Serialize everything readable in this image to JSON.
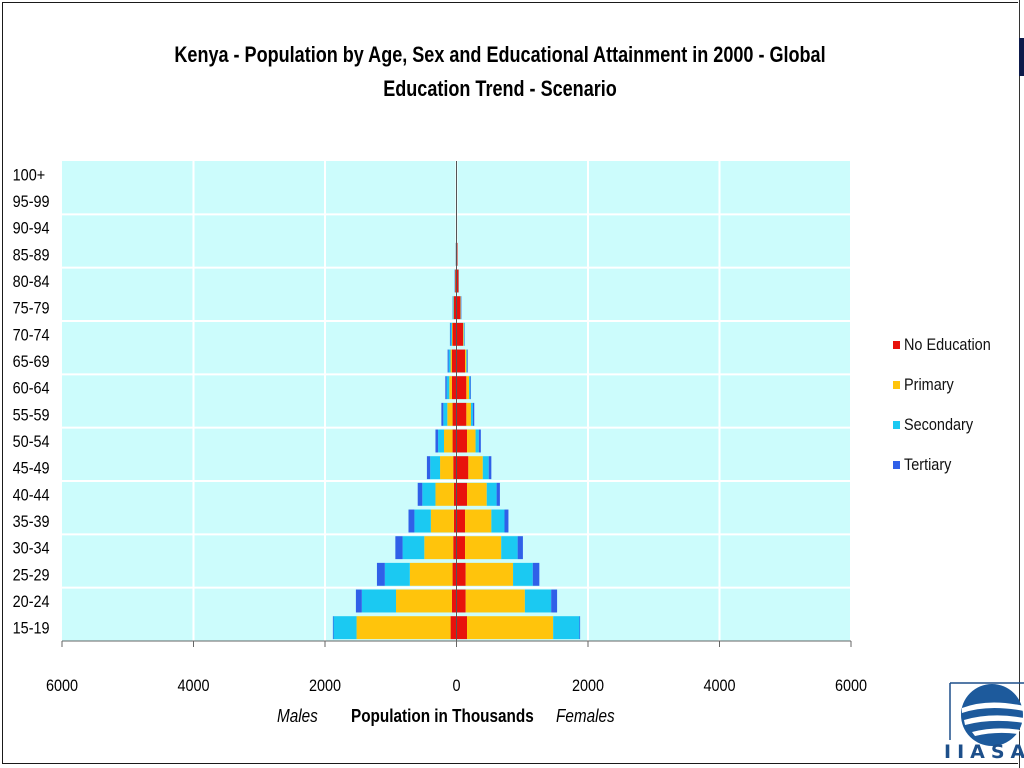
{
  "chart_data": {
    "type": "bar",
    "title": "Kenya - Population by Age, Sex and Educational  Attainment  in 2000 - Global Education  Trend - Scenario",
    "xlabel": "Population in Thousands",
    "left_label": "Males",
    "right_label": "Females",
    "xlim": [
      -6000,
      6000
    ],
    "x_ticks": [
      -6000,
      -4000,
      -2000,
      0,
      2000,
      4000,
      6000
    ],
    "x_tick_labels": [
      "6000",
      "4000",
      "2000",
      "0",
      "2000",
      "4000",
      "6000"
    ],
    "grid": true,
    "legend_position": "right",
    "categories": [
      "15-19",
      "20-24",
      "25-29",
      "30-34",
      "35-39",
      "40-44",
      "45-49",
      "50-54",
      "55-59",
      "60-64",
      "65-69",
      "70-74",
      "75-79",
      "80-84",
      "85-89",
      "90-94",
      "95-99",
      "100+"
    ],
    "series": [
      {
        "name": "No Education",
        "color": "#e8120c",
        "males": [
          90,
          70,
          60,
          50,
          40,
          40,
          50,
          60,
          60,
          70,
          70,
          60,
          40,
          20,
          10,
          5,
          2,
          1
        ],
        "females": [
          160,
          140,
          140,
          130,
          130,
          160,
          180,
          160,
          150,
          150,
          130,
          100,
          60,
          30,
          15,
          8,
          3,
          1
        ]
      },
      {
        "name": "Primary",
        "color": "#ffc40c",
        "males": [
          1430,
          850,
          650,
          440,
          350,
          280,
          200,
          130,
          80,
          40,
          20,
          10,
          5,
          2,
          0,
          0,
          0,
          0
        ],
        "females": [
          1310,
          900,
          720,
          550,
          400,
          300,
          220,
          130,
          70,
          40,
          20,
          10,
          5,
          2,
          0,
          0,
          0,
          0
        ]
      },
      {
        "name": "Secondary",
        "color": "#1bc9f2",
        "males": [
          350,
          520,
          380,
          330,
          250,
          200,
          150,
          90,
          60,
          40,
          30,
          20,
          10,
          5,
          2,
          0,
          0,
          0
        ],
        "females": [
          400,
          400,
          300,
          250,
          200,
          150,
          90,
          50,
          30,
          20,
          10,
          10,
          5,
          2,
          0,
          0,
          0,
          0
        ]
      },
      {
        "name": "Tertiary",
        "color": "#3060e8",
        "males": [
          10,
          90,
          120,
          110,
          90,
          70,
          50,
          40,
          30,
          20,
          15,
          10,
          5,
          3,
          1,
          0,
          0,
          0
        ],
        "females": [
          10,
          90,
          100,
          80,
          60,
          50,
          40,
          30,
          20,
          10,
          10,
          5,
          5,
          2,
          0,
          0,
          0,
          0
        ]
      }
    ],
    "colors": {
      "plot_background": "#ccfcfc",
      "gridline": "#ffffff"
    }
  },
  "logo": {
    "text": "IIASA"
  }
}
